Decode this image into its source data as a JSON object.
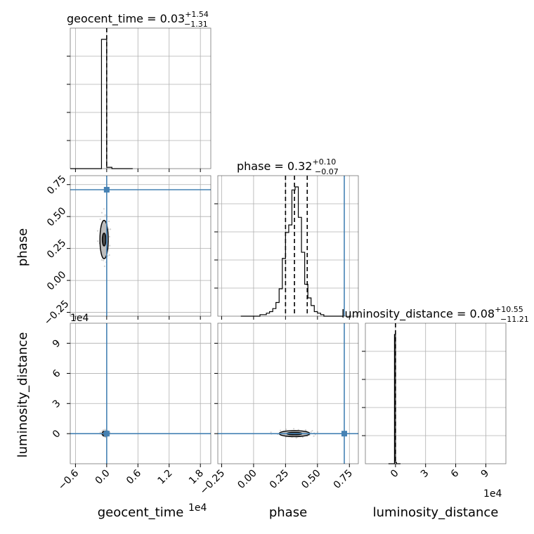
{
  "chart_data": {
    "type": "corner",
    "parameters": [
      "geocent_time",
      "phase",
      "luminosity_distance"
    ],
    "titles": [
      {
        "label": "geocent_time",
        "median": "0.03",
        "plus": "+1.54",
        "minus": "−1.31"
      },
      {
        "label": "phase",
        "median": "0.32",
        "plus": "+0.10",
        "minus": "−0.07"
      },
      {
        "label": "luminosity_distance",
        "median": "0.08",
        "plus": "+10.55",
        "minus": "−11.21"
      }
    ],
    "axes": {
      "geocent_time": {
        "range": [
          -7000,
          20000
        ],
        "ticks": [
          -6000,
          0,
          6000,
          12000,
          18000
        ],
        "tick_labels": [
          "−0.6",
          "0.0",
          "0.6",
          "1.2",
          "1.8"
        ],
        "offset_text": "1e4",
        "axis_label": "geocent_time"
      },
      "phase": {
        "range": [
          -0.28,
          0.82
        ],
        "ticks": [
          -0.25,
          0.0,
          0.25,
          0.5,
          0.75
        ],
        "tick_labels": [
          "−0.25",
          "0.00",
          "0.25",
          "0.50",
          "0.75"
        ],
        "axis_label": "phase"
      },
      "luminosity_distance": {
        "range": [
          -30000,
          110000
        ],
        "ticks": [
          0,
          30000,
          60000,
          90000
        ],
        "tick_labels": [
          "0",
          "3",
          "6",
          "9"
        ],
        "offset_text": "1e4",
        "axis_label": "luminosity_distance"
      }
    },
    "truths": {
      "geocent_time": 0,
      "phase": 0.71,
      "luminosity_distance": 0
    },
    "quantiles_shown": {
      "geocent_time": [
        0
      ],
      "phase": [
        0.25,
        0.32,
        0.42
      ],
      "luminosity_distance": [
        0
      ]
    },
    "histograms": {
      "geocent_time": {
        "edges": [
          -7000,
          -6000,
          -5000,
          -4000,
          -3000,
          -2000,
          -1000,
          0,
          1000,
          2000,
          3000,
          4000,
          5000
        ],
        "counts": [
          0,
          0,
          0,
          0,
          0,
          0,
          100,
          1,
          0,
          0,
          0,
          0
        ]
      },
      "phase": {
        "edges": [
          -0.1,
          -0.075,
          -0.05,
          -0.025,
          0.0,
          0.025,
          0.05,
          0.075,
          0.1,
          0.125,
          0.15,
          0.175,
          0.2,
          0.225,
          0.25,
          0.275,
          0.3,
          0.325,
          0.35,
          0.375,
          0.4,
          0.425,
          0.45,
          0.475,
          0.5,
          0.525,
          0.55,
          0.575,
          0.6,
          0.625,
          0.65,
          0.675,
          0.7
        ],
        "counts": [
          0,
          0,
          0,
          0,
          0,
          0,
          1,
          1,
          2,
          3,
          5,
          9,
          18,
          38,
          55,
          60,
          83,
          85,
          65,
          42,
          21,
          12,
          7,
          3,
          2,
          1,
          0,
          0,
          0,
          0,
          0,
          0
        ]
      },
      "luminosity_distance": {
        "edges": [
          -7000,
          -6000,
          -5000,
          -4000,
          -3000,
          -2000,
          -1000,
          0,
          1000,
          2000,
          3000,
          4000,
          5000
        ],
        "counts": [
          0,
          0,
          0,
          0,
          0,
          0,
          100,
          1,
          0,
          0,
          0,
          0
        ]
      }
    },
    "contours": {
      "phase_vs_geocent_time": {
        "center": [
          -500,
          0.32
        ],
        "outer_halfwidths": [
          800,
          0.15
        ],
        "inner_halfwidths": [
          350,
          0.05
        ]
      },
      "luminosity_distance_vs_geocent_time": {
        "center": [
          -300,
          0
        ],
        "outer_halfwidths": [
          600,
          2500
        ],
        "inner_halfwidths": [
          300,
          1200
        ]
      },
      "luminosity_distance_vs_phase": {
        "center": [
          0.32,
          0
        ],
        "outer_halfwidths": [
          0.12,
          3000
        ],
        "inner_halfwidths": [
          0.06,
          1200
        ]
      }
    },
    "grid": true
  }
}
